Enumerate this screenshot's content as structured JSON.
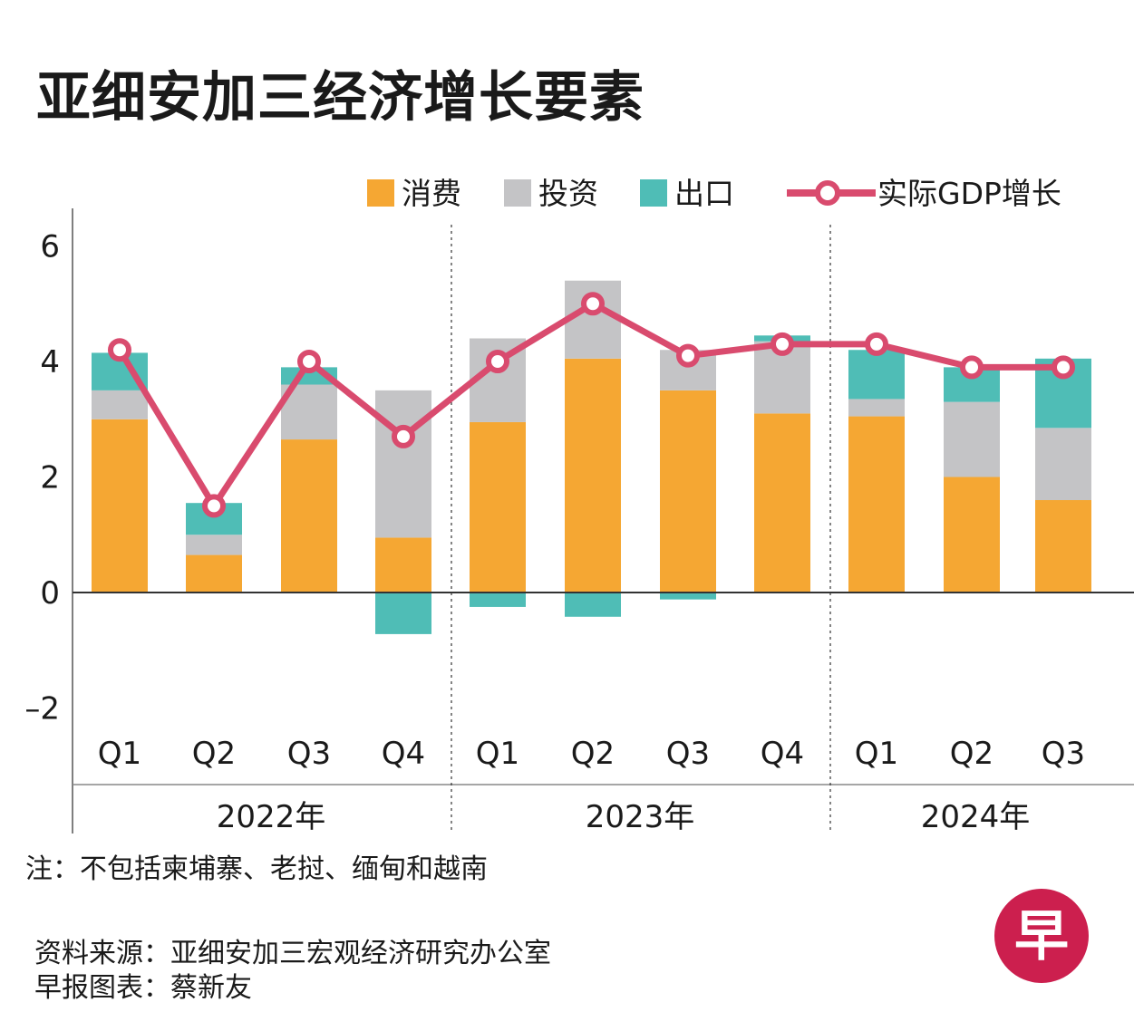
{
  "title": "亚细安加三经济增长要素",
  "legend": {
    "consumption": "消费",
    "investment": "投资",
    "exports": "出口",
    "gdp": "实际GDP增长"
  },
  "colors": {
    "consumption": "#f5a733",
    "investment": "#c4c4c6",
    "exports": "#4fbdb6",
    "gdp_line": "#d94b6e",
    "logo": "#cc1f4e"
  },
  "chart_data": {
    "type": "bar",
    "stacked": true,
    "categories": [
      "Q1",
      "Q2",
      "Q3",
      "Q4",
      "Q1",
      "Q2",
      "Q3",
      "Q4",
      "Q1",
      "Q2",
      "Q3"
    ],
    "groups": [
      {
        "label": "2022年",
        "count": 4
      },
      {
        "label": "2023年",
        "count": 4
      },
      {
        "label": "2024年",
        "count": 3
      }
    ],
    "series": [
      {
        "name": "消费",
        "key": "consumption",
        "values": [
          3.0,
          0.65,
          2.65,
          0.95,
          2.95,
          4.05,
          3.5,
          3.1,
          3.05,
          2.0,
          1.6
        ]
      },
      {
        "name": "投资",
        "key": "investment",
        "values": [
          0.5,
          0.35,
          0.95,
          2.55,
          1.45,
          1.35,
          0.7,
          1.25,
          0.3,
          1.3,
          1.25
        ]
      },
      {
        "name": "出口",
        "key": "exports",
        "values": [
          0.65,
          0.55,
          0.3,
          -0.72,
          -0.25,
          -0.42,
          -0.12,
          0.1,
          0.85,
          0.6,
          1.2
        ]
      }
    ],
    "line": {
      "name": "实际GDP增长",
      "values": [
        4.2,
        1.5,
        4.0,
        2.7,
        4.0,
        5.0,
        4.1,
        4.3,
        4.3,
        3.9,
        3.9
      ]
    },
    "ylim": [
      -3.3,
      6.6
    ],
    "yticks": [
      {
        "value": 6,
        "label": "6"
      },
      {
        "value": 4,
        "label": "4"
      },
      {
        "value": 2,
        "label": "2"
      },
      {
        "value": 0,
        "label": "0"
      },
      {
        "value": -2,
        "label": "–2"
      }
    ],
    "title": "亚细安加三经济增长要素",
    "xlabel": "",
    "ylabel": ""
  },
  "note": "注：不包括柬埔寨、老挝、缅甸和越南",
  "source": {
    "line1": "资料来源：亚细安加三宏观经济研究办公室",
    "line2": "早报图表：蔡新友"
  },
  "logo": {
    "char": "早"
  }
}
